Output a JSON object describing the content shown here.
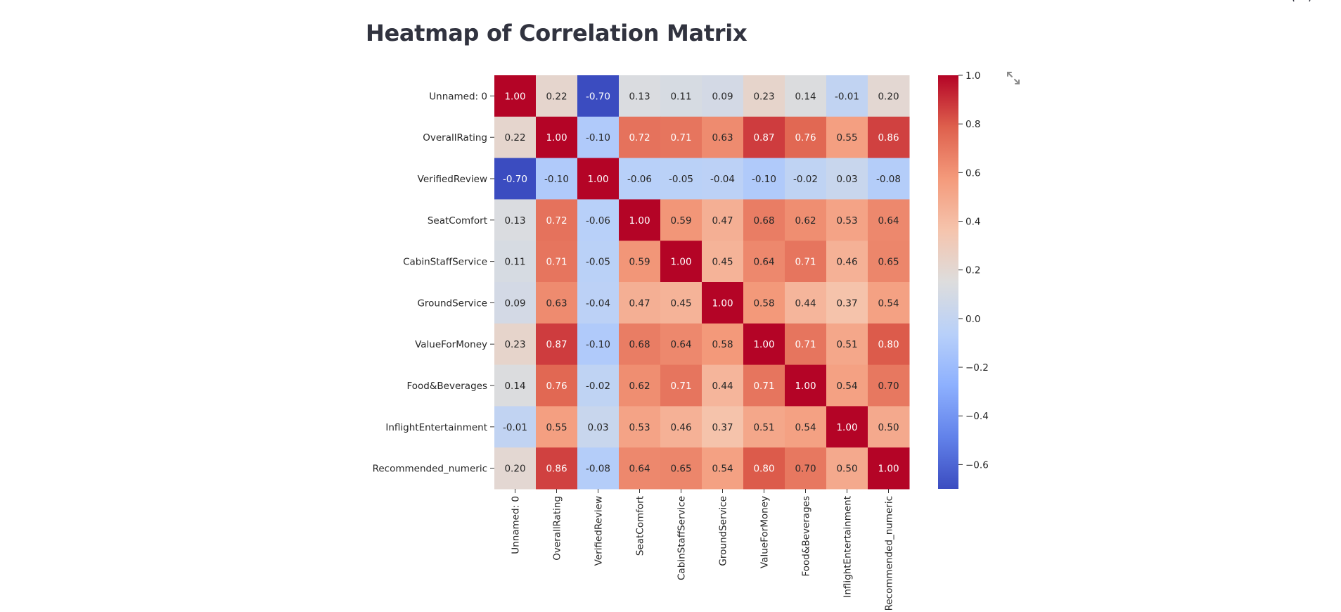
{
  "page": {
    "title": "Heatmap of Correlation Matrix"
  },
  "icons": {
    "expand": "fullscreen-expand-icon",
    "corner": "top-right-menu-icon"
  },
  "chart_data": {
    "type": "heatmap",
    "title": "",
    "colormap": "coolwarm",
    "rows": [
      "Unnamed: 0",
      "OverallRating",
      "VerifiedReview",
      "SeatComfort",
      "CabinStaffService",
      "GroundService",
      "ValueForMoney",
      "Food&Beverages",
      "InflightEntertainment",
      "Recommended_numeric"
    ],
    "columns": [
      "Unnamed: 0",
      "OverallRating",
      "VerifiedReview",
      "SeatComfort",
      "CabinStaffService",
      "GroundService",
      "ValueForMoney",
      "Food&Beverages",
      "InflightEntertainment",
      "Recommended_numeric"
    ],
    "values": [
      [
        1.0,
        0.22,
        -0.7,
        0.13,
        0.11,
        0.09,
        0.23,
        0.14,
        -0.01,
        0.2
      ],
      [
        0.22,
        1.0,
        -0.1,
        0.72,
        0.71,
        0.63,
        0.87,
        0.76,
        0.55,
        0.86
      ],
      [
        -0.7,
        -0.1,
        1.0,
        -0.06,
        -0.05,
        -0.04,
        -0.1,
        -0.02,
        0.03,
        -0.08
      ],
      [
        0.13,
        0.72,
        -0.06,
        1.0,
        0.59,
        0.47,
        0.68,
        0.62,
        0.53,
        0.64
      ],
      [
        0.11,
        0.71,
        -0.05,
        0.59,
        1.0,
        0.45,
        0.64,
        0.71,
        0.46,
        0.65
      ],
      [
        0.09,
        0.63,
        -0.04,
        0.47,
        0.45,
        1.0,
        0.58,
        0.44,
        0.37,
        0.54
      ],
      [
        0.23,
        0.87,
        -0.1,
        0.68,
        0.64,
        0.58,
        1.0,
        0.71,
        0.51,
        0.8
      ],
      [
        0.14,
        0.76,
        -0.02,
        0.62,
        0.71,
        0.44,
        0.71,
        1.0,
        0.54,
        0.7
      ],
      [
        -0.01,
        0.55,
        0.03,
        0.53,
        0.46,
        0.37,
        0.51,
        0.54,
        1.0,
        0.5
      ],
      [
        0.2,
        0.86,
        -0.08,
        0.64,
        0.65,
        0.54,
        0.8,
        0.7,
        0.5,
        1.0
      ]
    ],
    "annotation_format": "0.00",
    "colorbar": {
      "range": [
        -0.7,
        1.0
      ],
      "ticks": [
        1.0,
        0.8,
        0.6,
        0.4,
        0.2,
        0.0,
        -0.2,
        -0.4,
        -0.6
      ],
      "tick_labels": [
        "1.0",
        "0.8",
        "0.6",
        "0.4",
        "0.2",
        "0.0",
        "−0.2",
        "−0.4",
        "−0.6"
      ]
    }
  }
}
